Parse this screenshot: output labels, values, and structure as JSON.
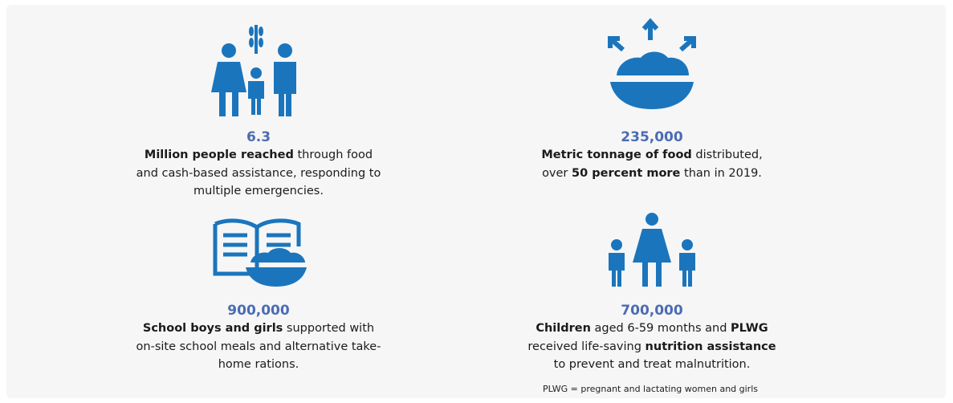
{
  "items": [
    {
      "number": "6.3",
      "lines": [
        [
          {
            "text": "Million people reached",
            "bold": true
          },
          {
            "text": "through food",
            "bold": false
          }
        ],
        [
          {
            "text": "and cash-based assistance, responding to",
            "bold": false
          }
        ],
        [
          {
            "text": "multiple emergencies.",
            "bold": false
          }
        ]
      ]
    },
    {
      "number": "235,000",
      "lines": [
        [
          {
            "text": "Metric tonnage of food",
            "bold": true
          },
          {
            "text": "distributed,",
            "bold": false
          }
        ],
        [
          {
            "text": "over",
            "bold": false
          },
          {
            "text": "50 percent more",
            "bold": true
          },
          {
            "text": "than in 2019.",
            "bold": false
          }
        ]
      ]
    },
    {
      "number": "900,000",
      "lines": [
        [
          {
            "text": "School boys and girls",
            "bold": true
          },
          {
            "text": "supported with",
            "bold": false
          }
        ],
        [
          {
            "text": "on-site school meals and alternative take-",
            "bold": false
          }
        ],
        [
          {
            "text": "home rations.",
            "bold": false
          }
        ]
      ]
    },
    {
      "number": "700,000",
      "lines": [
        [
          {
            "text": "Children",
            "bold": true
          },
          {
            "text": "aged 6-59 months and",
            "bold": false
          },
          {
            "text": "PLWG",
            "bold": true
          }
        ],
        [
          {
            "text": "received life-saving",
            "bold": false
          },
          {
            "text": "nutrition assistance",
            "bold": true
          }
        ],
        [
          {
            "text": "to prevent and treat malnutrition.",
            "bold": false
          }
        ]
      ]
    }
  ],
  "footnote": "PLWG = pregnant and lactating women and girls"
}
